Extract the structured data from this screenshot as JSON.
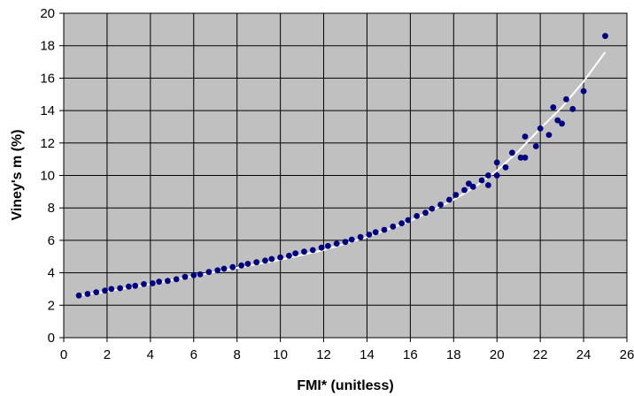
{
  "chart_data": {
    "type": "scatter",
    "title": "",
    "xlabel": "FMI* (unitless)",
    "ylabel": "Viney's m (%)",
    "xlim": [
      0,
      26
    ],
    "ylim": [
      0,
      20
    ],
    "xticks": [
      0,
      2,
      4,
      6,
      8,
      10,
      12,
      14,
      16,
      18,
      20,
      22,
      24,
      26
    ],
    "yticks": [
      0,
      2,
      4,
      6,
      8,
      10,
      12,
      14,
      16,
      18,
      20
    ],
    "grid": true,
    "legend": "none",
    "colors": {
      "plot_background": "#c0c0c0",
      "grid": "#000000",
      "points": "#000080",
      "trend": "#ffffff"
    },
    "series": [
      {
        "type": "scatter",
        "points": [
          [
            0.7,
            2.6
          ],
          [
            1.1,
            2.7
          ],
          [
            1.5,
            2.8
          ],
          [
            1.9,
            2.9
          ],
          [
            2.2,
            3.0
          ],
          [
            2.6,
            3.05
          ],
          [
            3.0,
            3.15
          ],
          [
            3.3,
            3.2
          ],
          [
            3.7,
            3.3
          ],
          [
            4.1,
            3.35
          ],
          [
            4.4,
            3.45
          ],
          [
            4.8,
            3.5
          ],
          [
            5.2,
            3.6
          ],
          [
            5.6,
            3.75
          ],
          [
            6.0,
            3.85
          ],
          [
            6.3,
            3.9
          ],
          [
            6.7,
            4.05
          ],
          [
            7.1,
            4.15
          ],
          [
            7.4,
            4.25
          ],
          [
            7.8,
            4.35
          ],
          [
            8.2,
            4.45
          ],
          [
            8.5,
            4.55
          ],
          [
            8.9,
            4.65
          ],
          [
            9.3,
            4.75
          ],
          [
            9.6,
            4.85
          ],
          [
            10.0,
            4.95
          ],
          [
            10.4,
            5.05
          ],
          [
            10.7,
            5.2
          ],
          [
            11.1,
            5.3
          ],
          [
            11.5,
            5.4
          ],
          [
            11.9,
            5.55
          ],
          [
            12.2,
            5.65
          ],
          [
            12.6,
            5.8
          ],
          [
            13.0,
            5.9
          ],
          [
            13.3,
            6.05
          ],
          [
            13.7,
            6.2
          ],
          [
            14.1,
            6.35
          ],
          [
            14.4,
            6.5
          ],
          [
            14.8,
            6.65
          ],
          [
            15.2,
            6.85
          ],
          [
            15.6,
            7.05
          ],
          [
            15.9,
            7.25
          ],
          [
            16.3,
            7.5
          ],
          [
            16.7,
            7.7
          ],
          [
            17.0,
            7.95
          ],
          [
            17.4,
            8.2
          ],
          [
            17.8,
            8.5
          ],
          [
            18.1,
            8.8
          ],
          [
            18.5,
            9.1
          ],
          [
            18.7,
            9.5
          ],
          [
            18.9,
            9.3
          ],
          [
            19.3,
            9.7
          ],
          [
            19.6,
            10.0
          ],
          [
            19.6,
            9.4
          ],
          [
            20.0,
            10.0
          ],
          [
            20.0,
            10.8
          ],
          [
            20.4,
            10.5
          ],
          [
            20.7,
            11.4
          ],
          [
            21.1,
            11.1
          ],
          [
            21.3,
            12.4
          ],
          [
            21.3,
            11.1
          ],
          [
            21.8,
            11.8
          ],
          [
            22.0,
            12.9
          ],
          [
            22.4,
            12.5
          ],
          [
            22.6,
            14.2
          ],
          [
            22.8,
            13.4
          ],
          [
            23.0,
            13.2
          ],
          [
            23.2,
            14.7
          ],
          [
            23.5,
            14.1
          ],
          [
            24.0,
            15.2
          ],
          [
            25.0,
            18.6
          ]
        ]
      },
      {
        "type": "line",
        "points": [
          [
            0.7,
            2.6
          ],
          [
            2.0,
            2.85
          ],
          [
            4.0,
            3.3
          ],
          [
            6.0,
            3.8
          ],
          [
            8.0,
            4.3
          ],
          [
            10.0,
            4.8
          ],
          [
            12.0,
            5.4
          ],
          [
            14.0,
            6.2
          ],
          [
            16.0,
            7.2
          ],
          [
            18.0,
            8.5
          ],
          [
            19.0,
            9.3
          ],
          [
            20.0,
            10.3
          ],
          [
            21.0,
            11.5
          ],
          [
            22.0,
            12.9
          ],
          [
            23.0,
            14.2
          ],
          [
            24.0,
            15.8
          ],
          [
            25.0,
            17.6
          ]
        ]
      }
    ]
  }
}
